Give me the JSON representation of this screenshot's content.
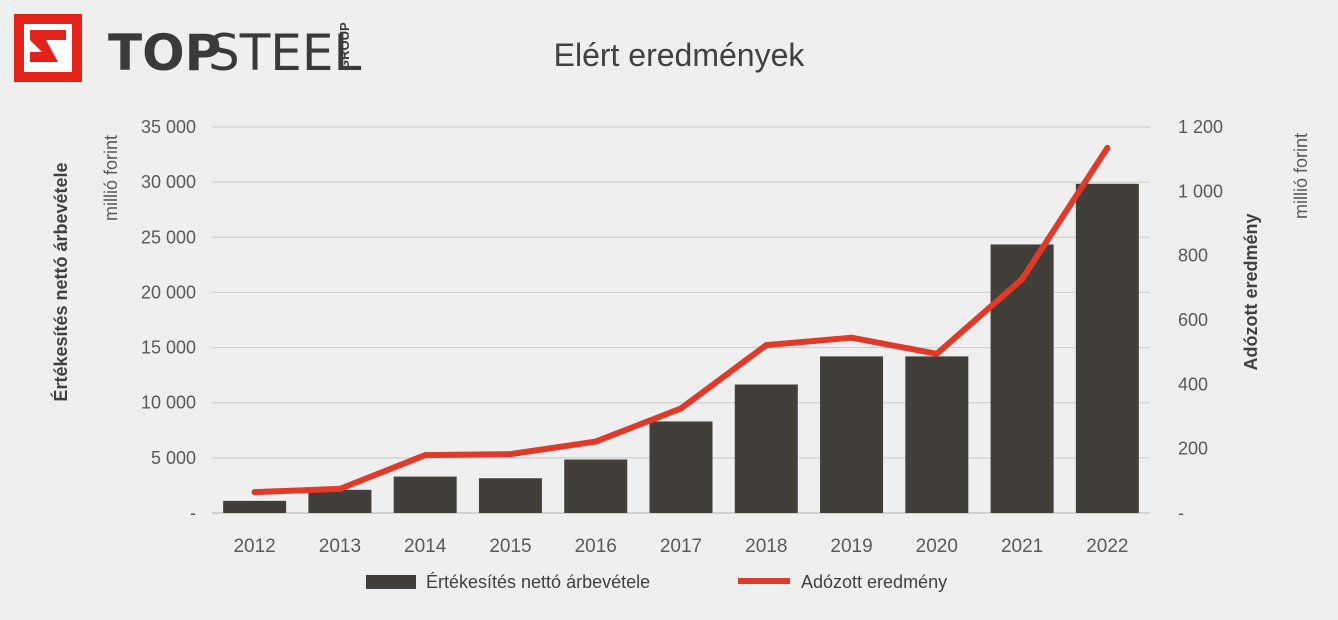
{
  "logo": {
    "word_part1": "TOP",
    "word_part2": "STEEL",
    "group": "GROUP",
    "mark_color": "#e2231a"
  },
  "chart_data": {
    "type": "bar+line",
    "title": "Elért eredmények",
    "categories": [
      "2012",
      "2013",
      "2014",
      "2015",
      "2016",
      "2017",
      "2018",
      "2019",
      "2020",
      "2021",
      "2022"
    ],
    "series": [
      {
        "name": "Értékesítés nettó árbevétele",
        "type": "bar",
        "axis": "left",
        "color": "#423e3a",
        "values": [
          1100,
          2100,
          3300,
          3150,
          4850,
          8300,
          11650,
          14200,
          14200,
          24350,
          29850
        ]
      },
      {
        "name": "Adózott eredmény",
        "type": "line",
        "axis": "right",
        "color": "#e03a2a",
        "values": [
          65,
          75,
          180,
          183,
          222,
          325,
          522,
          545,
          495,
          727,
          1135
        ]
      }
    ],
    "left_axis": {
      "label": "Értékesítés nettó árbevétele",
      "unit": "millió forint",
      "ylim": [
        0,
        35000
      ],
      "ticks": [
        0,
        5000,
        10000,
        15000,
        20000,
        25000,
        30000,
        35000
      ],
      "tick_labels": [
        "-",
        "5 000",
        "10 000",
        "15 000",
        "20 000",
        "25 000",
        "30 000",
        "35 000"
      ]
    },
    "right_axis": {
      "label": "Adózott eredmény",
      "unit": "millió forint",
      "ylim": [
        0,
        1200
      ],
      "ticks": [
        0,
        200,
        400,
        600,
        800,
        1000,
        1200
      ],
      "tick_labels": [
        "-",
        "200",
        "400",
        "600",
        "800",
        "1 000",
        "1 200"
      ]
    },
    "grid": true,
    "legend_position": "bottom"
  }
}
